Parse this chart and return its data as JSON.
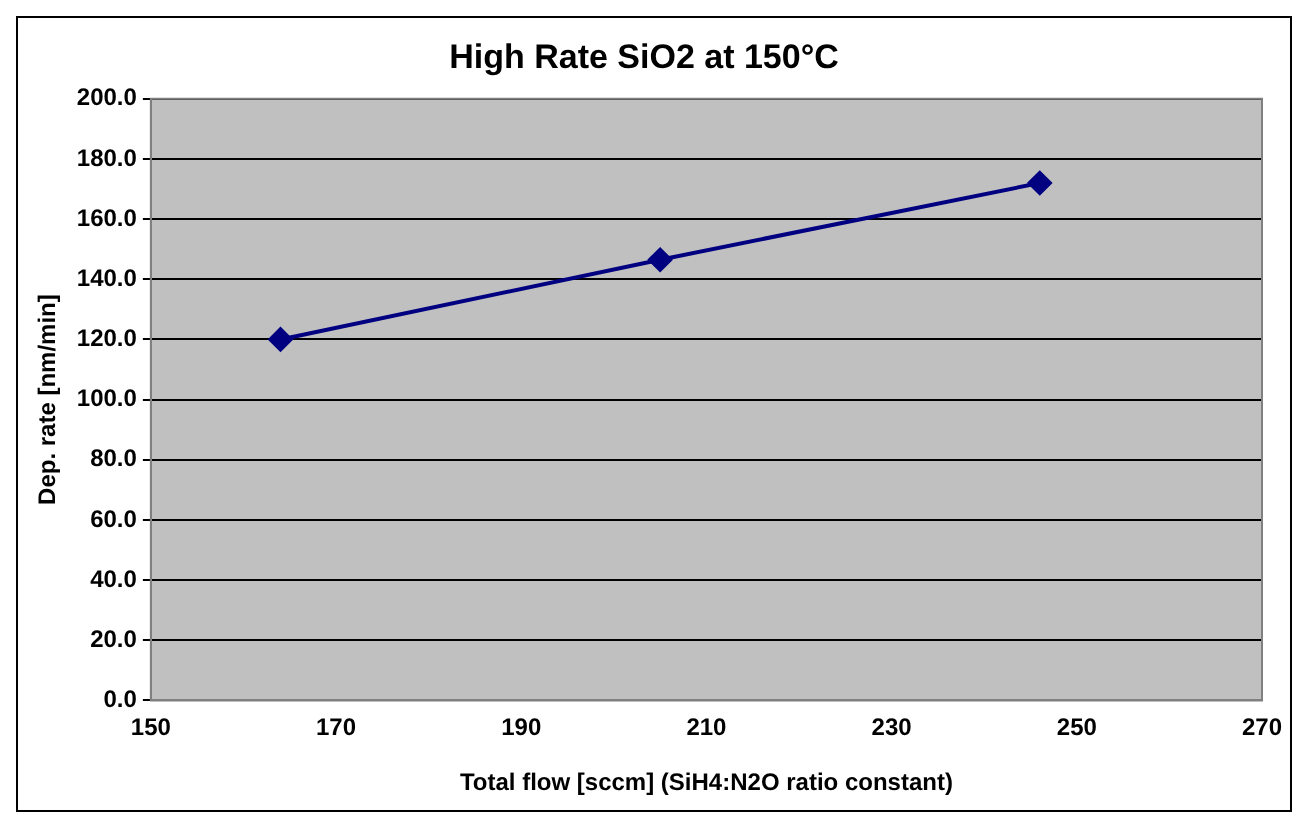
{
  "chart_data": {
    "type": "line",
    "title": "High Rate SiO2 at 150°C",
    "xlabel": "Total flow [sccm] (SiH4:N2O ratio constant)",
    "ylabel": "Dep. rate [nm/min]",
    "x": [
      164,
      205,
      246
    ],
    "series": [
      {
        "color": "#000080",
        "values": [
          120,
          146.5,
          172
        ]
      }
    ],
    "xlim": [
      150,
      270
    ],
    "xticks": [
      150,
      170,
      190,
      210,
      230,
      250,
      270
    ],
    "ylim": [
      0,
      200
    ],
    "yticks": [
      {
        "value": 0,
        "label": "0.0"
      },
      {
        "value": 20,
        "label": "20.0"
      },
      {
        "value": 40,
        "label": "40.0"
      },
      {
        "value": 60,
        "label": "60.0"
      },
      {
        "value": 80,
        "label": "80.0"
      },
      {
        "value": 100,
        "label": "100.0"
      },
      {
        "value": 120,
        "label": "120.0"
      },
      {
        "value": 140,
        "label": "140.0"
      },
      {
        "value": 160,
        "label": "160.0"
      },
      {
        "value": 180,
        "label": "180.0"
      },
      {
        "value": 200,
        "label": "200.0"
      }
    ],
    "grid": "y",
    "legend": false,
    "marker": "diamond",
    "line_style": "solid"
  }
}
